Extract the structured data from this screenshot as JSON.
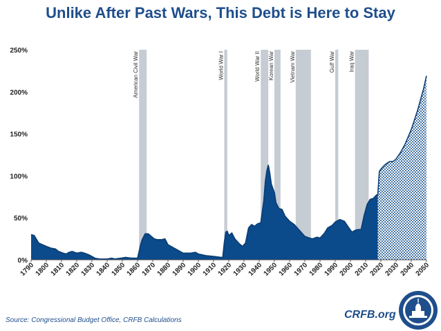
{
  "title": "Unlike After Past Wars, This Debt is Here to Stay",
  "source": "Source: Congressional Budget Office, CRFB Calculations",
  "brand": "CRFB.org",
  "colors": {
    "title": "#1f4e8c",
    "area": "#0b4a8b",
    "projection": "#a9c6e6",
    "war_band": "#c6ccd4"
  },
  "chart_data": {
    "type": "area",
    "title": "Unlike After Past Wars, This Debt is Here to Stay",
    "xlabel": "",
    "ylabel": "",
    "xlim": [
      1790,
      2050
    ],
    "ylim": [
      0,
      250
    ],
    "yticks": [
      "0%",
      "50%",
      "100%",
      "150%",
      "200%",
      "250%"
    ],
    "xticks": [
      "1790",
      "1800",
      "1810",
      "1820",
      "1830",
      "1840",
      "1850",
      "1860",
      "1870",
      "1880",
      "1890",
      "1900",
      "1910",
      "1920",
      "1930",
      "1940",
      "1950",
      "1960",
      "1970",
      "1980",
      "1990",
      "2000",
      "2010",
      "2020",
      "2030",
      "2040",
      "2050"
    ],
    "grid": false,
    "projection_start": 2018,
    "wars": [
      {
        "name": "American Civil War",
        "start": 1861,
        "end": 1865
      },
      {
        "name": "World War I",
        "start": 1917,
        "end": 1918
      },
      {
        "name": "World War II",
        "start": 1941,
        "end": 1945
      },
      {
        "name": "Korean War",
        "start": 1950,
        "end": 1953
      },
      {
        "name": "Vietnam War",
        "start": 1964,
        "end": 1973
      },
      {
        "name": "Gulf War",
        "start": 1990,
        "end": 1991
      },
      {
        "name": "Iraq War",
        "start": 2003,
        "end": 2011
      }
    ],
    "series": [
      {
        "points": [
          [
            1790,
            30
          ],
          [
            1792,
            29
          ],
          [
            1795,
            20
          ],
          [
            1800,
            16
          ],
          [
            1803,
            14
          ],
          [
            1806,
            13
          ],
          [
            1808,
            10
          ],
          [
            1811,
            8
          ],
          [
            1813,
            7
          ],
          [
            1815,
            9
          ],
          [
            1817,
            10
          ],
          [
            1820,
            8
          ],
          [
            1823,
            9
          ],
          [
            1825,
            8
          ],
          [
            1828,
            6
          ],
          [
            1830,
            4
          ],
          [
            1832,
            2
          ],
          [
            1835,
            1
          ],
          [
            1840,
            1
          ],
          [
            1843,
            2
          ],
          [
            1845,
            1
          ],
          [
            1849,
            2
          ],
          [
            1852,
            3
          ],
          [
            1856,
            2
          ],
          [
            1860,
            2
          ],
          [
            1862,
            18
          ],
          [
            1863,
            24
          ],
          [
            1865,
            31
          ],
          [
            1867,
            31
          ],
          [
            1869,
            28
          ],
          [
            1871,
            25
          ],
          [
            1873,
            24
          ],
          [
            1876,
            24
          ],
          [
            1878,
            25
          ],
          [
            1880,
            18
          ],
          [
            1885,
            13
          ],
          [
            1890,
            8
          ],
          [
            1895,
            8
          ],
          [
            1898,
            9
          ],
          [
            1900,
            7
          ],
          [
            1905,
            5
          ],
          [
            1910,
            4
          ],
          [
            1915,
            3
          ],
          [
            1916,
            3
          ],
          [
            1917,
            20
          ],
          [
            1918,
            33
          ],
          [
            1919,
            34
          ],
          [
            1920,
            29
          ],
          [
            1922,
            32
          ],
          [
            1924,
            25
          ],
          [
            1927,
            19
          ],
          [
            1929,
            16
          ],
          [
            1931,
            20
          ],
          [
            1933,
            38
          ],
          [
            1935,
            42
          ],
          [
            1937,
            40
          ],
          [
            1939,
            43
          ],
          [
            1941,
            44
          ],
          [
            1943,
            70
          ],
          [
            1944,
            93
          ],
          [
            1945,
            106
          ],
          [
            1946,
            113
          ],
          [
            1947,
            103
          ],
          [
            1948,
            90
          ],
          [
            1950,
            80
          ],
          [
            1951,
            68
          ],
          [
            1953,
            61
          ],
          [
            1955,
            60
          ],
          [
            1957,
            52
          ],
          [
            1960,
            46
          ],
          [
            1963,
            42
          ],
          [
            1966,
            36
          ],
          [
            1970,
            28
          ],
          [
            1973,
            26
          ],
          [
            1975,
            25
          ],
          [
            1978,
            27
          ],
          [
            1980,
            26
          ],
          [
            1983,
            32
          ],
          [
            1985,
            38
          ],
          [
            1988,
            41
          ],
          [
            1990,
            45
          ],
          [
            1993,
            48
          ],
          [
            1996,
            46
          ],
          [
            1999,
            38
          ],
          [
            2001,
            33
          ],
          [
            2003,
            35
          ],
          [
            2005,
            36
          ],
          [
            2007,
            36
          ],
          [
            2009,
            53
          ],
          [
            2011,
            66
          ],
          [
            2013,
            72
          ],
          [
            2015,
            73
          ],
          [
            2017,
            77
          ],
          [
            2018,
            78
          ],
          [
            2019,
            105
          ],
          [
            2020,
            108
          ],
          [
            2022,
            112
          ],
          [
            2024,
            115
          ],
          [
            2026,
            117
          ],
          [
            2028,
            117
          ],
          [
            2030,
            120
          ],
          [
            2033,
            128
          ],
          [
            2036,
            138
          ],
          [
            2040,
            155
          ],
          [
            2044,
            177
          ],
          [
            2048,
            203
          ],
          [
            2050,
            219
          ]
        ]
      }
    ]
  }
}
